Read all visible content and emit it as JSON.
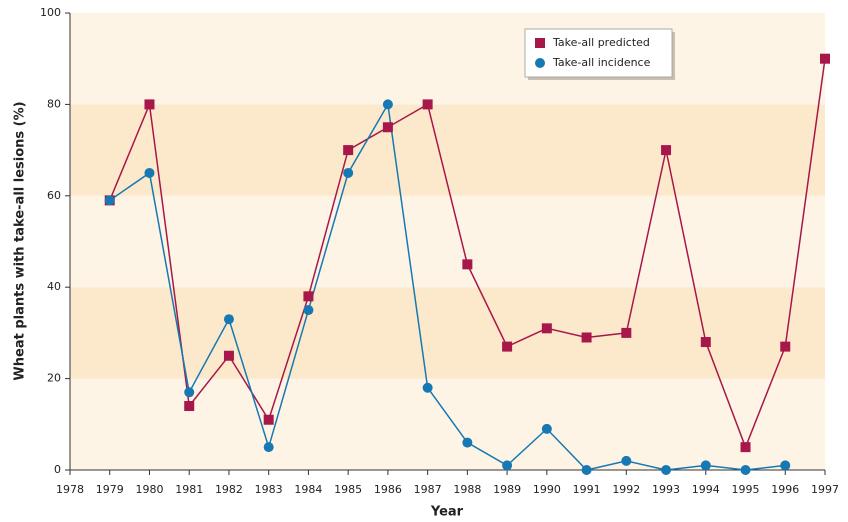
{
  "chart_data": {
    "type": "line",
    "xlabel": "Year",
    "ylabel": "Wheat plants with take-all lesions (%)",
    "x": [
      1979,
      1980,
      1981,
      1982,
      1983,
      1984,
      1985,
      1986,
      1987,
      1988,
      1989,
      1990,
      1991,
      1992,
      1993,
      1994,
      1995,
      1996,
      1997
    ],
    "series": [
      {
        "name": "Take-all predicted",
        "color": "#a8174a",
        "marker": "square",
        "values": [
          59,
          80,
          14,
          25,
          11,
          38,
          70,
          75,
          80,
          45,
          27,
          31,
          29,
          30,
          70,
          28,
          5,
          27,
          90
        ]
      },
      {
        "name": "Take-all incidence",
        "color": "#1679b3",
        "marker": "circle",
        "values": [
          59,
          65,
          17,
          33,
          5,
          35,
          65,
          80,
          18,
          6,
          1,
          9,
          0,
          2,
          0,
          1,
          0,
          1,
          null
        ]
      }
    ],
    "xlim": [
      1978,
      1997
    ],
    "xticks": [
      1978,
      1979,
      1980,
      1981,
      1982,
      1983,
      1984,
      1985,
      1986,
      1987,
      1988,
      1989,
      1990,
      1991,
      1992,
      1993,
      1994,
      1995,
      1996,
      1997
    ],
    "ylim": [
      0,
      100
    ],
    "yticks": [
      0,
      20,
      40,
      60,
      80,
      100
    ],
    "legend": "upper right"
  }
}
